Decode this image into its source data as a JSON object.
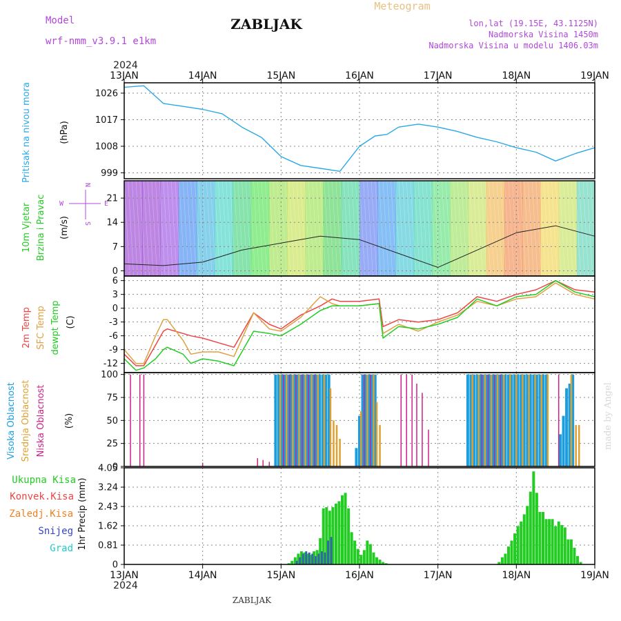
{
  "header": {
    "model_label": "Model",
    "model_name": "wrf-nmm_v3.9.1 e1km",
    "station": "ZABLJAK",
    "meteogram": "Meteogram",
    "lonlat": "lon,lat (19.15E, 43.1125N)",
    "elevation": "Nadmorska Visina 1450m",
    "model_elevation": "Nadmorska Visina u modelu 1406.03m",
    "year": "2024",
    "footer_station": "ZABLJAK",
    "watermark": "made by Angel"
  },
  "colors": {
    "pressure": "#2aa8e6",
    "temp2m": "#ee4444",
    "sfc": "#e0a040",
    "dew": "#22cc22",
    "high_cloud": "#1a9ee0",
    "mid_cloud": "#e0a030",
    "low_cloud": "#cc2288",
    "precip_total": "#22cc22",
    "precip_conv": "#3366aa"
  },
  "chart_data": [
    {
      "type": "line",
      "panel": "pressure",
      "ylabel": [
        "Pritisak na nivou mora",
        "(hPa)"
      ],
      "x_ticks": [
        "13JAN",
        "14JAN",
        "15JAN",
        "16JAN",
        "17JAN",
        "18JAN",
        "19JAN"
      ],
      "yticks": [
        999,
        1008,
        1017,
        1026
      ],
      "ylim": [
        997,
        1029.5
      ],
      "x": [
        0,
        0.25,
        0.5,
        0.75,
        1.0,
        1.25,
        1.5,
        1.75,
        2.0,
        2.25,
        2.5,
        2.75,
        3.0,
        3.2,
        3.35,
        3.5,
        3.75,
        4.0,
        4.25,
        4.5,
        4.75,
        5.0,
        5.25,
        5.5,
        5.75,
        6.0
      ],
      "series": [
        {
          "name": "",
          "values": [
            1028,
            1028.5,
            1022.5,
            1021.5,
            1020.5,
            1019,
            1014.5,
            1011,
            1004.5,
            1001.5,
            1000.5,
            999.5,
            1008,
            1011.5,
            1012,
            1014.5,
            1015.5,
            1014.5,
            1013,
            1011,
            1009.5,
            1007.5,
            1006,
            1003,
            1005.5,
            1007.5
          ]
        }
      ]
    },
    {
      "type": "line",
      "panel": "wind",
      "ylabel": [
        "10m Vjetar",
        "Brzina i Pravac",
        "(m/s)"
      ],
      "compass": [
        "N",
        "E",
        "S",
        "W"
      ],
      "yticks": [
        0,
        7,
        14,
        21
      ],
      "ylim": [
        -1.5,
        26
      ],
      "x": [
        0,
        0.5,
        1.0,
        1.5,
        2.0,
        2.5,
        3.0,
        3.5,
        4.0,
        4.5,
        5.0,
        5.5,
        6.0
      ],
      "series": [
        {
          "name": "",
          "values": [
            2,
            1.5,
            2.5,
            6,
            8,
            10,
            9,
            5,
            1,
            6,
            11,
            13,
            10
          ]
        }
      ]
    },
    {
      "type": "line",
      "panel": "temperature",
      "ylabel": [
        "2m Temp",
        "SFC Temp",
        "dewpt Temp",
        "(C)"
      ],
      "yticks": [
        -12,
        -9,
        -6,
        -3,
        0,
        3,
        6
      ],
      "ylim": [
        -14,
        7
      ],
      "x": [
        0,
        0.15,
        0.25,
        0.4,
        0.5,
        0.55,
        0.75,
        0.85,
        1.0,
        1.2,
        1.4,
        1.65,
        1.85,
        2.0,
        2.25,
        2.5,
        2.65,
        2.75,
        3.0,
        3.25,
        3.3,
        3.5,
        3.75,
        4.0,
        4.25,
        4.5,
        4.75,
        5.0,
        5.25,
        5.5,
        5.75,
        6.0
      ],
      "series": [
        {
          "name": "2m Temp",
          "values": [
            -10,
            -12.5,
            -12.5,
            -8,
            -5,
            -4.5,
            -5.5,
            -6,
            -6.5,
            -7.5,
            -8.5,
            -1,
            -3.5,
            -4.5,
            -1.5,
            0.5,
            2,
            1.5,
            1.5,
            2,
            -4,
            -2.5,
            -3,
            -2.5,
            -1,
            2.5,
            1.5,
            3,
            4,
            6,
            4,
            3.5
          ]
        },
        {
          "name": "SFC Temp",
          "values": [
            -9,
            -12,
            -12,
            -6,
            -2.5,
            -2.5,
            -7,
            -10,
            -9.5,
            -9.5,
            -10.5,
            -1,
            -4.5,
            -5,
            -2,
            2.5,
            1,
            0.5,
            0.5,
            1,
            -5.5,
            -3.5,
            -5,
            -3,
            -1.5,
            1.5,
            0.5,
            2,
            2.5,
            5.5,
            3,
            2
          ]
        },
        {
          "name": "dewpt Temp",
          "values": [
            -11,
            -13.5,
            -13,
            -11,
            -9,
            -8.5,
            -10,
            -12,
            -11,
            -11.5,
            -12.5,
            -5,
            -5.5,
            -6,
            -3.5,
            -0.5,
            0.5,
            0.5,
            0.5,
            1,
            -6.5,
            -4,
            -4.5,
            -3.5,
            -2,
            2,
            0.5,
            2.5,
            3,
            6,
            3.5,
            2.5
          ]
        }
      ]
    },
    {
      "type": "bar",
      "panel": "clouds",
      "ylabel": [
        "Visoka Oblacnost",
        "Srednja Oblacnost",
        "Niska Oblacnost",
        "(%)"
      ],
      "yticks": [
        0,
        25,
        50,
        75,
        100
      ],
      "ylim": [
        0,
        102
      ],
      "series": [
        {
          "name": "Visoka Oblacnost",
          "x": [
            1.93,
            1.97,
            2.01,
            2.05,
            2.09,
            2.13,
            2.17,
            2.21,
            2.25,
            2.29,
            2.33,
            2.37,
            2.41,
            2.45,
            2.49,
            2.53,
            2.57,
            2.61,
            2.96,
            3.0,
            3.04,
            3.08,
            3.12,
            3.16,
            3.2,
            4.38,
            4.42,
            4.46,
            4.5,
            4.54,
            4.58,
            4.62,
            4.66,
            4.7,
            4.74,
            4.78,
            4.82,
            4.86,
            4.9,
            4.94,
            4.98,
            5.02,
            5.06,
            5.1,
            5.14,
            5.18,
            5.22,
            5.26,
            5.3,
            5.34,
            5.38,
            5.56,
            5.6,
            5.64,
            5.68,
            5.72
          ],
          "values": [
            100,
            100,
            100,
            100,
            100,
            100,
            100,
            100,
            100,
            100,
            100,
            100,
            100,
            100,
            100,
            100,
            100,
            100,
            20,
            55,
            100,
            100,
            100,
            100,
            100,
            100,
            100,
            100,
            100,
            100,
            100,
            100,
            100,
            100,
            100,
            100,
            100,
            100,
            100,
            100,
            100,
            100,
            100,
            100,
            100,
            100,
            100,
            100,
            100,
            100,
            100,
            35,
            55,
            85,
            90,
            100
          ]
        },
        {
          "name": "Srednja Oblacnost",
          "x": [
            1.99,
            2.07,
            2.15,
            2.23,
            2.31,
            2.39,
            2.47,
            2.55,
            2.63,
            2.67,
            2.71,
            2.75,
            3.02,
            3.1,
            3.18,
            3.22,
            3.26,
            4.44,
            4.52,
            4.6,
            4.68,
            4.76,
            4.84,
            4.92,
            5.0,
            5.08,
            5.16,
            5.24,
            5.32,
            5.4,
            5.7,
            5.76,
            5.8
          ],
          "values": [
            100,
            100,
            100,
            100,
            100,
            100,
            100,
            100,
            85,
            50,
            45,
            30,
            60,
            100,
            100,
            70,
            45,
            100,
            100,
            100,
            100,
            100,
            100,
            100,
            100,
            100,
            100,
            100,
            100,
            100,
            100,
            45,
            45
          ]
        },
        {
          "name": "Niska Oblacnost",
          "x": [
            0.08,
            0.2,
            0.25,
            1.0,
            1.7,
            1.77,
            1.85,
            2.03,
            2.11,
            2.19,
            2.27,
            2.35,
            2.43,
            3.06,
            3.14,
            3.53,
            3.6,
            3.67,
            3.73,
            3.8,
            3.88,
            4.56,
            4.64,
            4.72,
            4.8,
            5.54
          ],
          "values": [
            100,
            100,
            100,
            4,
            9,
            7,
            5,
            100,
            100,
            100,
            100,
            100,
            100,
            100,
            100,
            100,
            100,
            100,
            90,
            80,
            40,
            100,
            100,
            100,
            100,
            100
          ]
        }
      ]
    },
    {
      "type": "bar",
      "panel": "precipitation",
      "ylabel": [
        "1hr Precip (mm)"
      ],
      "legend": [
        "Ukupna Kisa",
        "Konvek.Kisa",
        "Zaledj.Kisa",
        "Snijeg",
        "Grad"
      ],
      "yticks": [
        0,
        0.81,
        1.62,
        2.43,
        3.24,
        4.05
      ],
      "ylim": [
        0,
        4.05
      ],
      "x_ticks": [
        "13JAN",
        "14JAN",
        "15JAN",
        "16JAN",
        "17JAN",
        "18JAN",
        "19JAN"
      ],
      "series": [
        {
          "name": "Ukupna Kisa",
          "x": [
            2.1,
            2.14,
            2.18,
            2.22,
            2.26,
            2.3,
            2.34,
            2.38,
            2.42,
            2.46,
            2.5,
            2.54,
            2.58,
            2.62,
            2.66,
            2.7,
            2.74,
            2.78,
            2.82,
            2.86,
            2.9,
            2.94,
            2.98,
            3.02,
            3.06,
            3.1,
            3.14,
            3.18,
            3.22,
            3.26,
            3.3,
            3.34,
            4.78,
            4.82,
            4.86,
            4.9,
            4.94,
            4.98,
            5.02,
            5.06,
            5.1,
            5.14,
            5.18,
            5.22,
            5.26,
            5.3,
            5.34,
            5.38,
            5.42,
            5.46,
            5.5,
            5.54,
            5.58,
            5.62,
            5.66,
            5.7,
            5.74,
            5.78,
            5.82
          ],
          "values": [
            0.05,
            0.15,
            0.3,
            0.45,
            0.55,
            0.5,
            0.45,
            0.4,
            0.55,
            0.6,
            1.1,
            2.35,
            2.4,
            2.25,
            2.4,
            2.55,
            2.65,
            2.9,
            3.0,
            2.35,
            1.35,
            1.0,
            0.65,
            0.4,
            0.6,
            1.0,
            0.85,
            0.5,
            0.3,
            0.2,
            0.1,
            0.05,
            0.1,
            0.3,
            0.45,
            0.75,
            1.0,
            1.3,
            1.6,
            1.8,
            2.1,
            2.45,
            3.05,
            3.9,
            3.0,
            2.2,
            2.2,
            1.9,
            1.9,
            1.9,
            1.6,
            1.8,
            1.65,
            1.55,
            1.05,
            1.05,
            0.7,
            0.35,
            0.1
          ]
        },
        {
          "name": "Konvek.Kisa",
          "x": [
            2.2,
            2.24,
            2.28,
            2.32,
            2.36,
            2.4,
            2.44,
            2.48,
            2.52,
            2.56,
            2.6,
            2.64
          ],
          "values": [
            0.15,
            0.3,
            0.45,
            0.55,
            0.5,
            0.45,
            0.35,
            0.45,
            0.55,
            0.5,
            1.0,
            1.15
          ]
        }
      ]
    }
  ]
}
